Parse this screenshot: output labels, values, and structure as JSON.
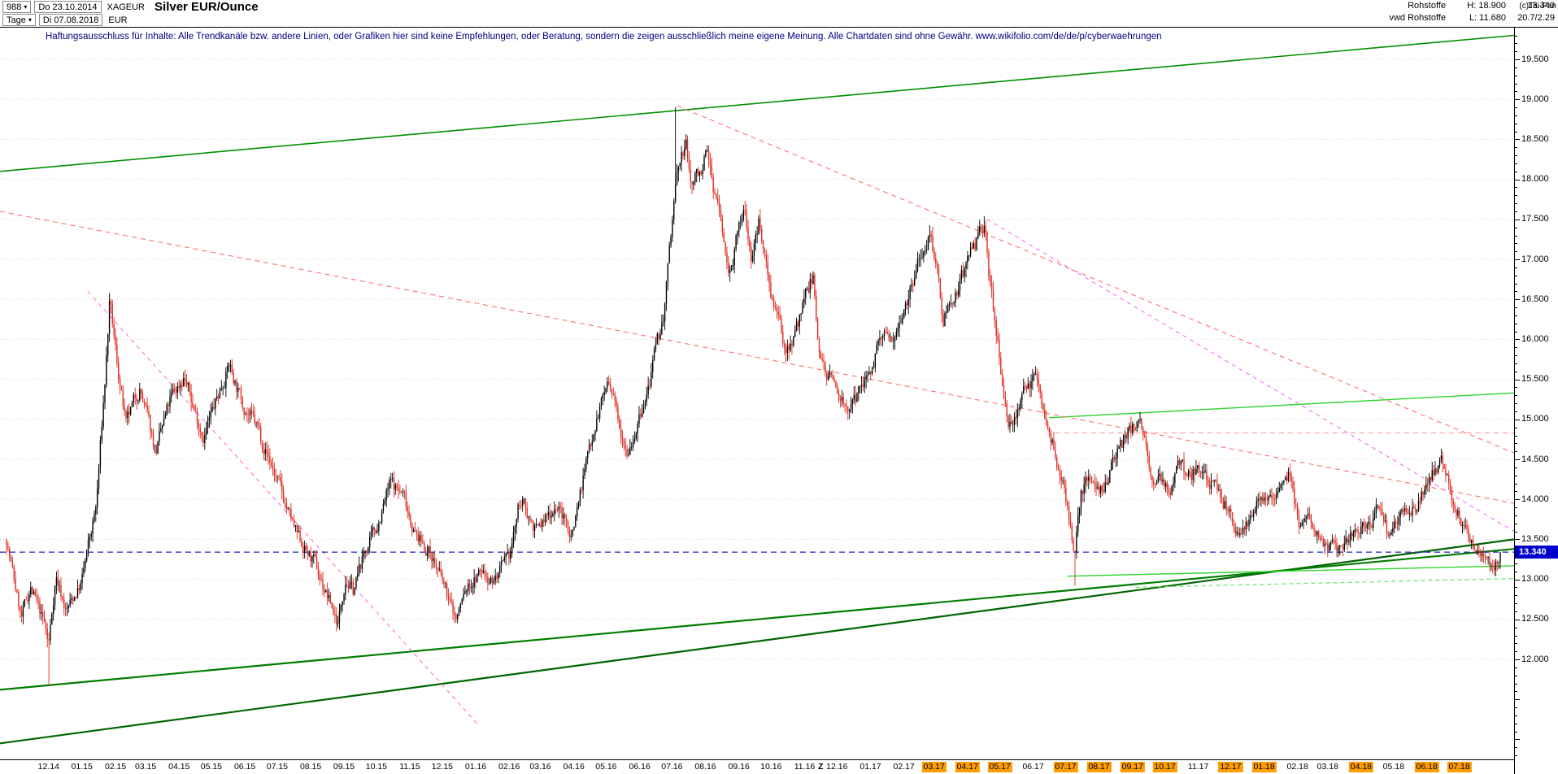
{
  "header": {
    "bars_count": "988",
    "first_date": "Do 23.10.2014",
    "symbol": "XAGEUR",
    "title": "Silver EUR/Ounce",
    "period": "Tage",
    "last_date": "Di 07.08.2018",
    "currency": "EUR",
    "category": "Rohstoffe",
    "feed": "vwd Rohstoffe",
    "high_label": "H: 18.900",
    "low_label": "L: 11.680",
    "last_price": "13.340",
    "extra_info": "20.7/2.29",
    "copyright": "(c)Tai-Pan"
  },
  "disclaimer": "Haftungsausschluss für Inhalte: Alle Trendkanäle bzw. andere Linien, oder Grafiken hier sind keine Empfehlungen, oder Beratung, sondern die zeigen ausschließlich meine eigene Meinung. Alle Chartdaten sind ohne Gewähr.  www.wikifolio.com/de/de/p/cyberwaehrungen",
  "axis": {
    "y_labels": [
      {
        "value": 19.5,
        "label": "19.500"
      },
      {
        "value": 19.0,
        "label": "19.000"
      },
      {
        "value": 18.5,
        "label": "18.500"
      },
      {
        "value": 18.0,
        "label": "18.000"
      },
      {
        "value": 17.5,
        "label": "17.500"
      },
      {
        "value": 17.0,
        "label": "17.000"
      },
      {
        "value": 16.5,
        "label": "16.500"
      },
      {
        "value": 16.0,
        "label": "16.000"
      },
      {
        "value": 15.5,
        "label": "15.500"
      },
      {
        "value": 15.0,
        "label": "15.000"
      },
      {
        "value": 14.5,
        "label": "14.500"
      },
      {
        "value": 14.0,
        "label": "14.000"
      },
      {
        "value": 13.5,
        "label": "13.500"
      },
      {
        "value": 13.0,
        "label": "13.000"
      },
      {
        "value": 12.5,
        "label": "12.500"
      },
      {
        "value": 12.0,
        "label": "12.000"
      }
    ],
    "price_marker": {
      "label": "13.340",
      "value": 13.34,
      "color": "#0000cc"
    },
    "x_labels": [
      {
        "label": "12.14",
        "f": 0.0321,
        "highlight": false
      },
      {
        "label": "01.15",
        "f": 0.0541,
        "highlight": false
      },
      {
        "label": "02.15",
        "f": 0.0763,
        "highlight": false
      },
      {
        "label": "03.15",
        "f": 0.0962,
        "highlight": false
      },
      {
        "label": "04.15",
        "f": 0.1183,
        "highlight": false
      },
      {
        "label": "05.15",
        "f": 0.1396,
        "highlight": false
      },
      {
        "label": "06.15",
        "f": 0.1617,
        "highlight": false
      },
      {
        "label": "07.15",
        "f": 0.1831,
        "highlight": false
      },
      {
        "label": "08.15",
        "f": 0.2052,
        "highlight": false
      },
      {
        "label": "09.15",
        "f": 0.2272,
        "highlight": false
      },
      {
        "label": "10.15",
        "f": 0.2486,
        "highlight": false
      },
      {
        "label": "11.15",
        "f": 0.2707,
        "highlight": false
      },
      {
        "label": "12.15",
        "f": 0.2921,
        "highlight": false
      },
      {
        "label": "01.16",
        "f": 0.3142,
        "highlight": false
      },
      {
        "label": "02.16",
        "f": 0.3363,
        "highlight": false
      },
      {
        "label": "03.16",
        "f": 0.3569,
        "highlight": false
      },
      {
        "label": "04.16",
        "f": 0.379,
        "highlight": false
      },
      {
        "label": "05.16",
        "f": 0.4003,
        "highlight": false
      },
      {
        "label": "06.16",
        "f": 0.4225,
        "highlight": false
      },
      {
        "label": "07.16",
        "f": 0.4438,
        "highlight": false
      },
      {
        "label": "08.16",
        "f": 0.4659,
        "highlight": false
      },
      {
        "label": "09.16",
        "f": 0.488,
        "highlight": false
      },
      {
        "label": "10.16",
        "f": 0.5093,
        "highlight": false
      },
      {
        "label": "11.16",
        "f": 0.5314,
        "highlight": false
      },
      {
        "label": "Z",
        "f": 0.542,
        "highlight": false,
        "marker": true
      },
      {
        "label": "12.16",
        "f": 0.5528,
        "highlight": false
      },
      {
        "label": "01.17",
        "f": 0.5749,
        "highlight": false
      },
      {
        "label": "02.17",
        "f": 0.597,
        "highlight": false
      },
      {
        "label": "03.17",
        "f": 0.6169,
        "highlight": true
      },
      {
        "label": "04.17",
        "f": 0.639,
        "highlight": true
      },
      {
        "label": "05.17",
        "f": 0.6604,
        "highlight": true
      },
      {
        "label": "06.17",
        "f": 0.6824,
        "highlight": false
      },
      {
        "label": "07.17",
        "f": 0.7038,
        "highlight": true
      },
      {
        "label": "08.17",
        "f": 0.7259,
        "highlight": true
      },
      {
        "label": "09.17",
        "f": 0.748,
        "highlight": true
      },
      {
        "label": "10.17",
        "f": 0.7694,
        "highlight": true
      },
      {
        "label": "11.17",
        "f": 0.7914,
        "highlight": false
      },
      {
        "label": "12.17",
        "f": 0.8128,
        "highlight": true
      },
      {
        "label": "01.18",
        "f": 0.8349,
        "highlight": true
      },
      {
        "label": "02.18",
        "f": 0.857,
        "highlight": false
      },
      {
        "label": "03.18",
        "f": 0.8769,
        "highlight": false
      },
      {
        "label": "04.18",
        "f": 0.899,
        "highlight": true
      },
      {
        "label": "05.18",
        "f": 0.9204,
        "highlight": false
      },
      {
        "label": "06.18",
        "f": 0.9424,
        "highlight": true
      },
      {
        "label": "07.18",
        "f": 0.9638,
        "highlight": true
      }
    ]
  },
  "chart_data": {
    "type": "candlestick",
    "instrument": "Silver EUR/Ounce",
    "unit": "EUR",
    "period": "daily",
    "bars": 988,
    "seed": 7,
    "high": 18.9,
    "low": 11.68,
    "last": 13.34,
    "ylim": [
      10.75,
      19.9
    ],
    "grid_step": 0.5,
    "up_color": "#000000",
    "down_color": "#e02a20",
    "grid_color": "#cfcfcf",
    "price_path": [
      [
        0.0,
        13.5
      ],
      [
        0.01,
        12.5
      ],
      [
        0.016,
        12.9
      ],
      [
        0.026,
        12.4
      ],
      [
        0.028,
        12.15
      ],
      [
        0.033,
        13.05
      ],
      [
        0.04,
        12.6
      ],
      [
        0.05,
        12.95
      ],
      [
        0.06,
        13.9
      ],
      [
        0.066,
        15.5
      ],
      [
        0.069,
        16.45
      ],
      [
        0.074,
        15.7
      ],
      [
        0.08,
        14.9
      ],
      [
        0.089,
        15.4
      ],
      [
        0.1,
        14.6
      ],
      [
        0.11,
        15.25
      ],
      [
        0.119,
        15.55
      ],
      [
        0.125,
        15.15
      ],
      [
        0.132,
        14.8
      ],
      [
        0.14,
        15.2
      ],
      [
        0.149,
        15.7
      ],
      [
        0.157,
        15.25
      ],
      [
        0.169,
        14.85
      ],
      [
        0.181,
        14.25
      ],
      [
        0.194,
        13.55
      ],
      [
        0.206,
        13.2
      ],
      [
        0.222,
        12.45
      ],
      [
        0.227,
        13.05
      ],
      [
        0.232,
        12.85
      ],
      [
        0.24,
        13.35
      ],
      [
        0.247,
        13.6
      ],
      [
        0.257,
        14.2
      ],
      [
        0.266,
        14.05
      ],
      [
        0.274,
        13.55
      ],
      [
        0.285,
        13.3
      ],
      [
        0.301,
        12.5
      ],
      [
        0.307,
        12.85
      ],
      [
        0.318,
        13.1
      ],
      [
        0.326,
        13.0
      ],
      [
        0.336,
        13.2
      ],
      [
        0.344,
        14.0
      ],
      [
        0.355,
        13.6
      ],
      [
        0.368,
        13.95
      ],
      [
        0.378,
        13.55
      ],
      [
        0.393,
        14.9
      ],
      [
        0.402,
        15.45
      ],
      [
        0.416,
        14.65
      ],
      [
        0.427,
        15.15
      ],
      [
        0.44,
        16.3
      ],
      [
        0.448,
        17.95
      ],
      [
        0.452,
        18.3
      ],
      [
        0.455,
        18.4
      ],
      [
        0.458,
        17.95
      ],
      [
        0.462,
        18.05
      ],
      [
        0.469,
        18.3
      ],
      [
        0.473,
        17.95
      ],
      [
        0.478,
        17.5
      ],
      [
        0.483,
        16.85
      ],
      [
        0.494,
        17.6
      ],
      [
        0.499,
        17.0
      ],
      [
        0.504,
        17.5
      ],
      [
        0.512,
        16.6
      ],
      [
        0.521,
        15.85
      ],
      [
        0.528,
        16.1
      ],
      [
        0.54,
        16.8
      ],
      [
        0.543,
        15.95
      ],
      [
        0.55,
        15.55
      ],
      [
        0.566,
        15.1
      ],
      [
        0.57,
        15.3
      ],
      [
        0.584,
        15.9
      ],
      [
        0.594,
        16.1
      ],
      [
        0.603,
        16.55
      ],
      [
        0.612,
        17.1
      ],
      [
        0.619,
        17.4
      ],
      [
        0.627,
        16.3
      ],
      [
        0.634,
        16.55
      ],
      [
        0.643,
        16.9
      ],
      [
        0.655,
        17.45
      ],
      [
        0.659,
        16.6
      ],
      [
        0.671,
        14.9
      ],
      [
        0.679,
        15.2
      ],
      [
        0.688,
        15.6
      ],
      [
        0.699,
        14.8
      ],
      [
        0.71,
        13.95
      ],
      [
        0.715,
        13.3
      ],
      [
        0.719,
        14.05
      ],
      [
        0.724,
        14.3
      ],
      [
        0.73,
        14.0
      ],
      [
        0.738,
        14.35
      ],
      [
        0.752,
        14.85
      ],
      [
        0.759,
        15.0
      ],
      [
        0.766,
        14.35
      ],
      [
        0.779,
        14.05
      ],
      [
        0.784,
        14.45
      ],
      [
        0.791,
        14.3
      ],
      [
        0.8,
        14.4
      ],
      [
        0.809,
        14.2
      ],
      [
        0.827,
        13.5
      ],
      [
        0.838,
        14.1
      ],
      [
        0.848,
        14.05
      ],
      [
        0.859,
        14.4
      ],
      [
        0.866,
        13.6
      ],
      [
        0.872,
        13.7
      ],
      [
        0.881,
        13.45
      ],
      [
        0.893,
        13.32
      ],
      [
        0.898,
        13.55
      ],
      [
        0.91,
        13.6
      ],
      [
        0.919,
        13.95
      ],
      [
        0.925,
        13.55
      ],
      [
        0.934,
        13.8
      ],
      [
        0.944,
        13.9
      ],
      [
        0.96,
        14.5
      ],
      [
        0.968,
        14.0
      ],
      [
        0.975,
        13.7
      ],
      [
        0.986,
        13.38
      ],
      [
        0.994,
        13.15
      ],
      [
        1.0,
        13.34
      ]
    ],
    "extremes": [
      {
        "f": 0.028,
        "type": "low",
        "value": 11.68
      },
      {
        "f": 0.069,
        "type": "high",
        "value": 16.58
      },
      {
        "f": 0.448,
        "type": "high",
        "value": 18.9
      },
      {
        "f": 0.715,
        "type": "low",
        "value": 12.92
      },
      {
        "f": 0.96,
        "type": "high",
        "value": 14.62
      }
    ],
    "trend_lines": [
      {
        "name": "upper-channel-green",
        "color": "#009000",
        "width": 1.6,
        "dash": "",
        "from": [
          0,
          18.1
        ],
        "to": [
          1,
          19.8
        ]
      },
      {
        "name": "lower-support-dark-a",
        "color": "#006400",
        "width": 2.2,
        "dash": "",
        "from": [
          0,
          10.95
        ],
        "to": [
          1,
          13.5
        ]
      },
      {
        "name": "lower-support-dark-b",
        "color": "#007d00",
        "width": 2.2,
        "dash": "",
        "from": [
          0,
          11.62
        ],
        "to": [
          1,
          13.38
        ]
      },
      {
        "name": "resistance-green-right",
        "color": "#2ed32e",
        "width": 1.4,
        "dash": "",
        "from": [
          0.693,
          15.02
        ],
        "to": [
          1,
          15.33
        ]
      },
      {
        "name": "support-green-right",
        "color": "#2ed32e",
        "width": 1.4,
        "dash": "",
        "from": [
          0.705,
          13.04
        ],
        "to": [
          1,
          13.17
        ]
      },
      {
        "name": "support-green-dashed",
        "color": "#66e866",
        "width": 1.2,
        "dash": "5 4",
        "from": [
          0.75,
          12.9
        ],
        "to": [
          1,
          13.01
        ]
      },
      {
        "name": "downtrend-major-red",
        "color": "#ff7070",
        "width": 1.1,
        "dash": "6 5",
        "from": [
          0,
          17.6
        ],
        "to": [
          1,
          13.95
        ]
      },
      {
        "name": "downtrend-2016-red",
        "color": "#ff7070",
        "width": 1.1,
        "dash": "6 5",
        "from": [
          0.447,
          18.92
        ],
        "to": [
          1,
          14.58
        ]
      },
      {
        "name": "resistance-red-dashed",
        "color": "#ff9090",
        "width": 1.1,
        "dash": "6 5",
        "from": [
          0.697,
          14.83
        ],
        "to": [
          1,
          14.83
        ]
      },
      {
        "name": "downtrend-2015-magenta",
        "color": "#ff70d0",
        "width": 1.1,
        "dash": "5 5",
        "from": [
          0.058,
          16.6
        ],
        "to": [
          0.315,
          11.2
        ]
      },
      {
        "name": "downtrend-2017-magenta",
        "color": "#f070f0",
        "width": 1.1,
        "dash": "5 5",
        "from": [
          0.652,
          17.5
        ],
        "to": [
          1,
          13.6
        ]
      },
      {
        "name": "last-price-dashed-blue",
        "color": "#2020c0",
        "width": 1.2,
        "dash": "7 5",
        "from": [
          0,
          13.34
        ],
        "to": [
          1,
          13.34
        ]
      }
    ]
  }
}
